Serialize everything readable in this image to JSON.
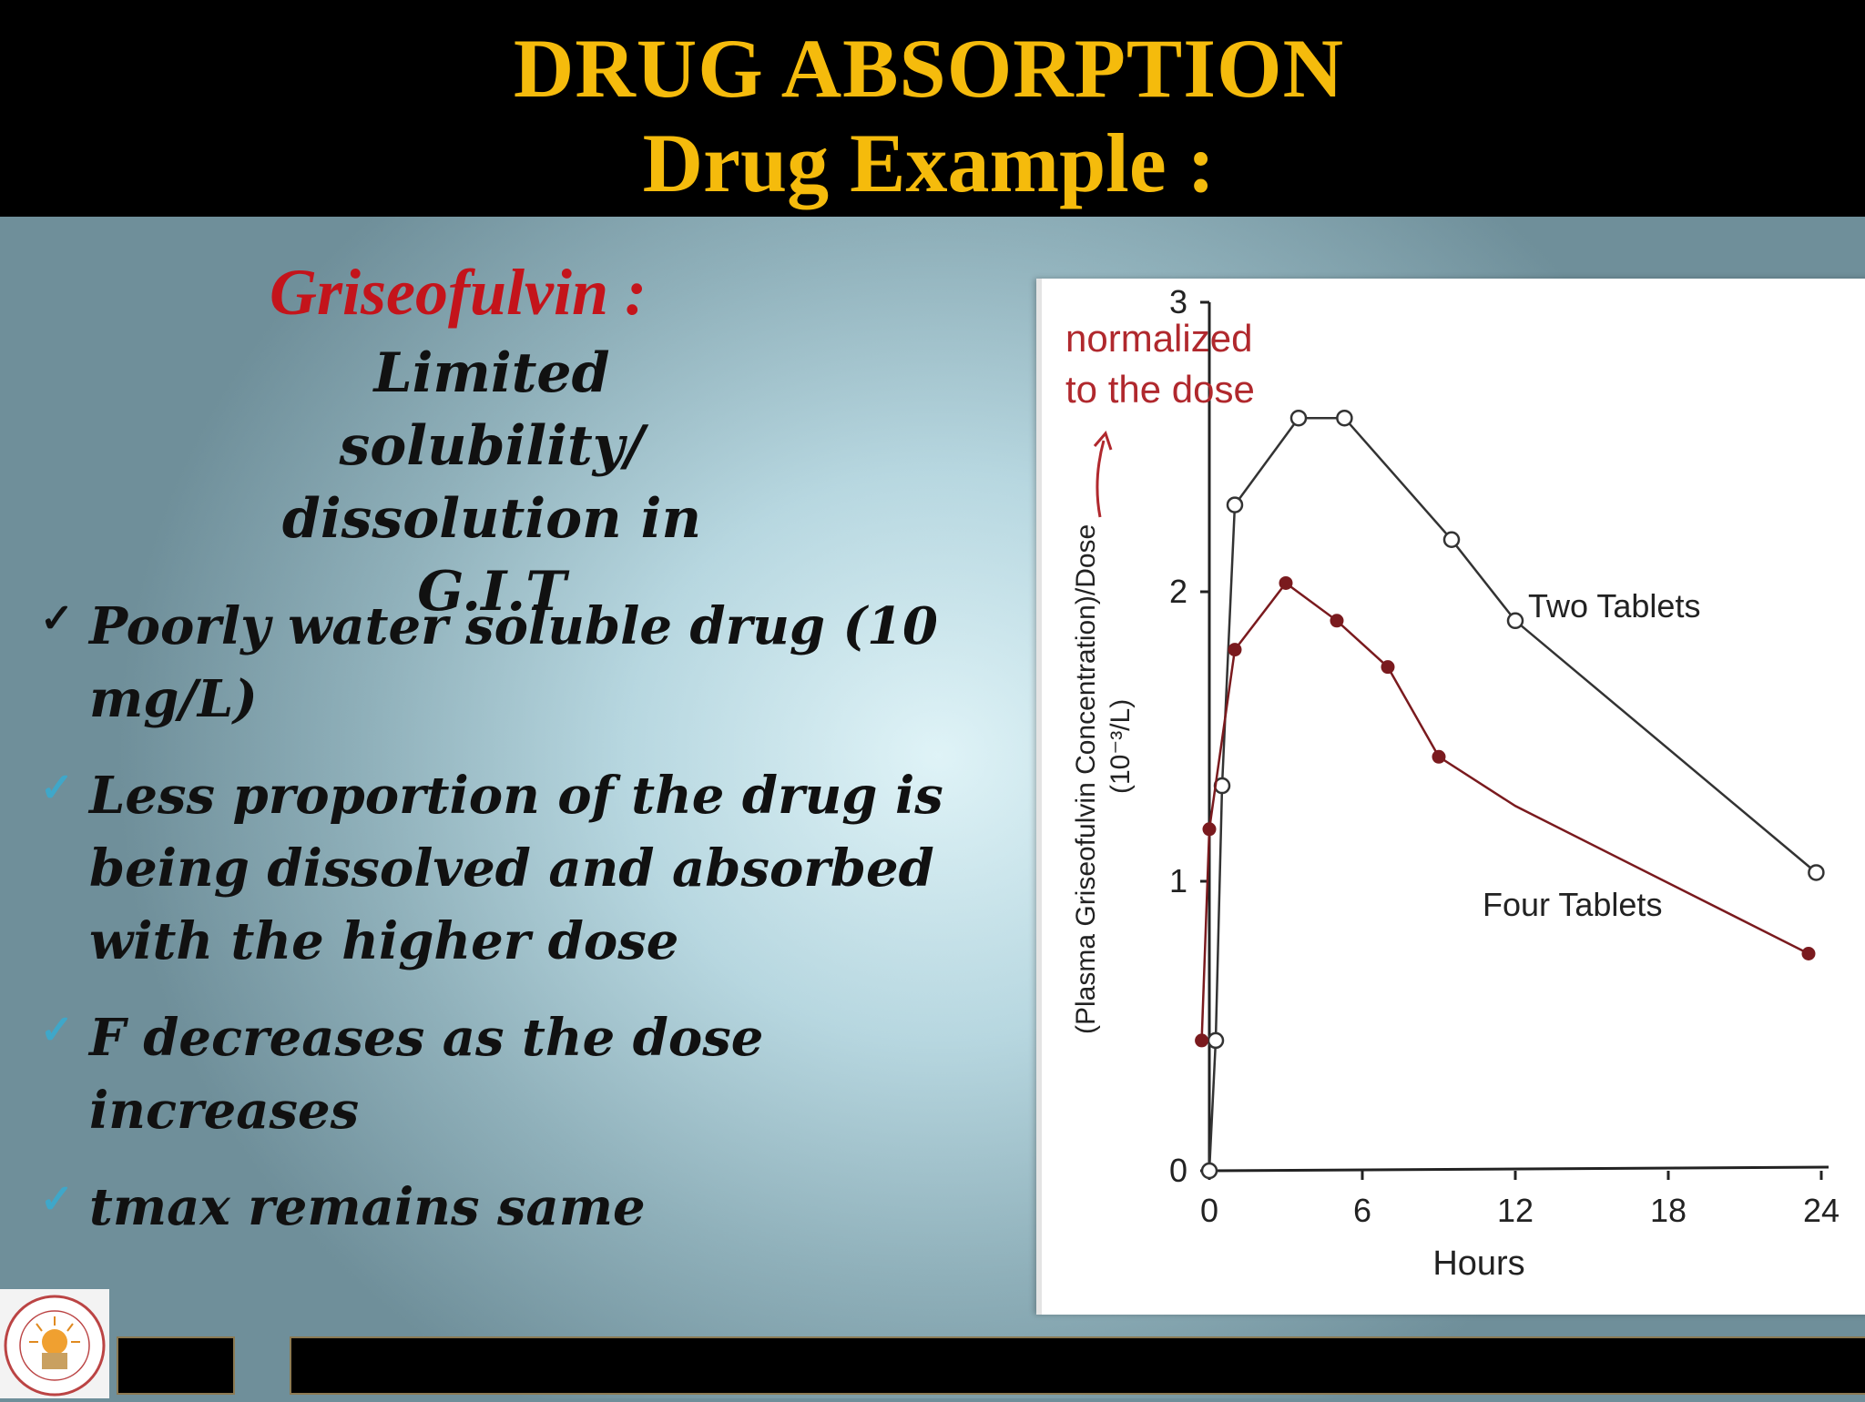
{
  "header": {
    "title_line1": "DRUG ABSORPTION",
    "title_line2": "Drug Example :"
  },
  "left": {
    "drug_name": "Griseofulvin :",
    "subtitle_line1": "Limited solubility/",
    "subtitle_line2": "dissolution in G.I.T",
    "bullets": [
      {
        "lines": [
          "Poorly water soluble drug (10",
          "mg/L)"
        ]
      },
      {
        "lines": [
          "Less proportion of the drug is",
          "being dissolved and absorbed",
          "with the higher dose"
        ]
      },
      {
        "lines": [
          "F decreases as the dose increases"
        ]
      },
      {
        "lines": [
          "tmax remains same"
        ]
      }
    ],
    "check_colors": {
      "first": "#111111",
      "rest": "#3fa7c9"
    }
  },
  "chart_data": {
    "type": "line",
    "annotation_line1": "normalized",
    "annotation_line2": "to the dose",
    "ylabel_line1": "(Plasma Griseofulvin Concentration)/Dose",
    "ylabel_line2": "(10⁻³/L)",
    "xlabel": "Hours",
    "xlim": [
      0,
      24
    ],
    "ylim": [
      0,
      3
    ],
    "x_ticks": [
      0,
      6,
      12,
      18,
      24
    ],
    "y_ticks": [
      0,
      1,
      2,
      3
    ],
    "series": [
      {
        "name": "Two Tablets",
        "color": "#333333",
        "marker": "open-circle",
        "x": [
          0,
          0.25,
          0.5,
          1,
          3.5,
          5.3,
          9.5,
          12,
          23.8
        ],
        "y": [
          0,
          0.45,
          1.33,
          2.3,
          2.6,
          2.6,
          2.18,
          1.9,
          1.03
        ]
      },
      {
        "name": "Four Tablets",
        "color": "#7a1a1e",
        "marker": "filled-circle",
        "x": [
          -0.3,
          0,
          1,
          3,
          5,
          7,
          9,
          12,
          23.5
        ],
        "y": [
          0.45,
          1.18,
          1.8,
          2.03,
          1.9,
          1.74,
          1.43,
          1.26,
          0.75
        ],
        "marker_flags": [
          true,
          true,
          true,
          true,
          true,
          true,
          true,
          false,
          true
        ]
      }
    ],
    "series_label_positions_note": ""
  }
}
